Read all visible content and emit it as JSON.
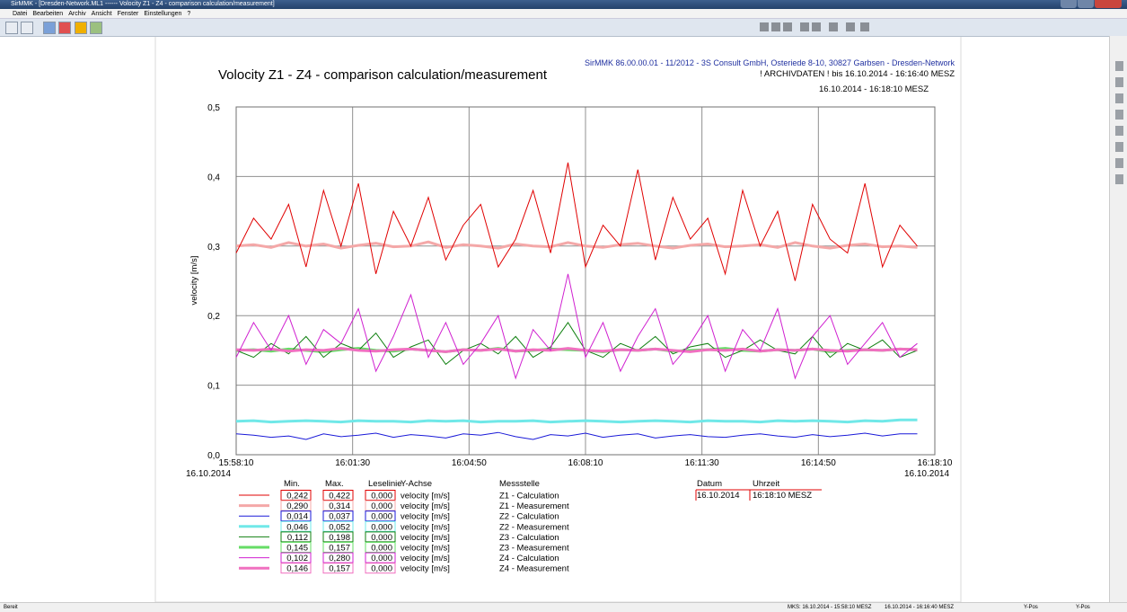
{
  "window": {
    "title": "SirMMK - [Dresden-Network.ML1 ------ Volocity Z1 - Z4 - comparison calculation/measurement]",
    "menu": [
      "Datei",
      "Bearbeiten",
      "Archiv",
      "Ansicht",
      "Fenster",
      "Einstellungen",
      "?"
    ]
  },
  "status": {
    "left": "Bereit",
    "items": [
      "MKS: 16.10.2014 - 15:58:10 MESZ",
      "16.10.2014 - 16:16:40 MESZ",
      "Y-Pos",
      "Y-Pos"
    ]
  },
  "header": {
    "info": "SirMMK 86.00.00.01 - 11/2012 - 3S Consult GmbH, Osteriede 8-10, 30827 Garbsen - Dresden-Network",
    "archive": "! ARCHIVDATEN !  bis 16.10.2014 - 16:16:40 MESZ",
    "range": "16.10.2014 - 16:18:10 MESZ"
  },
  "chart_data": {
    "type": "line",
    "title": "Volocity Z1 - Z4 - comparison calculation/measurement",
    "y_label": "velocity [m/s]",
    "x_date_label": "16.10.2014",
    "xlim": [
      "15:58:10",
      "16:18:10"
    ],
    "xticks": [
      "15:58:10",
      "16:01:30",
      "16:04:50",
      "16:08:10",
      "16:11:30",
      "16:14:50",
      "16:18:10"
    ],
    "ylim": [
      0,
      0.5
    ],
    "yticks": [
      {
        "value": 0,
        "label": "0,0"
      },
      {
        "value": 0.1,
        "label": "0,1"
      },
      {
        "value": 0.2,
        "label": "0,2"
      },
      {
        "value": 0.3,
        "label": "0,3"
      },
      {
        "value": 0.4,
        "label": "0,4"
      },
      {
        "value": 0.5,
        "label": "0,5"
      }
    ],
    "grid": true,
    "x": [
      "15:58:10",
      "15:58:40",
      "15:59:10",
      "15:59:40",
      "16:00:10",
      "16:00:40",
      "16:01:10",
      "16:01:40",
      "16:02:10",
      "16:02:40",
      "16:03:10",
      "16:03:40",
      "16:04:10",
      "16:04:40",
      "16:05:10",
      "16:05:40",
      "16:06:10",
      "16:06:40",
      "16:07:10",
      "16:07:40",
      "16:08:10",
      "16:08:40",
      "16:09:10",
      "16:09:40",
      "16:10:10",
      "16:10:40",
      "16:11:10",
      "16:11:40",
      "16:12:10",
      "16:12:40",
      "16:13:10",
      "16:13:40",
      "16:14:10",
      "16:14:40",
      "16:15:10",
      "16:15:40",
      "16:16:10",
      "16:16:40",
      "16:17:10",
      "16:17:40"
    ],
    "series": [
      {
        "name": "Z1 - Calculation",
        "color": "#e00000",
        "width": 1,
        "values": [
          0.29,
          0.34,
          0.31,
          0.36,
          0.27,
          0.38,
          0.3,
          0.39,
          0.26,
          0.35,
          0.3,
          0.37,
          0.28,
          0.33,
          0.36,
          0.27,
          0.31,
          0.38,
          0.29,
          0.42,
          0.27,
          0.33,
          0.3,
          0.41,
          0.28,
          0.37,
          0.31,
          0.34,
          0.26,
          0.38,
          0.3,
          0.35,
          0.25,
          0.36,
          0.31,
          0.29,
          0.39,
          0.27,
          0.33,
          0.3
        ]
      },
      {
        "name": "Z1 - Measurement",
        "color": "#f4a8a8",
        "width": 3,
        "values": [
          0.3,
          0.302,
          0.298,
          0.305,
          0.3,
          0.303,
          0.297,
          0.301,
          0.304,
          0.299,
          0.3,
          0.306,
          0.298,
          0.302,
          0.3,
          0.297,
          0.303,
          0.3,
          0.299,
          0.305,
          0.3,
          0.298,
          0.302,
          0.304,
          0.3,
          0.297,
          0.301,
          0.303,
          0.299,
          0.3,
          0.302,
          0.298,
          0.305,
          0.3,
          0.297,
          0.301,
          0.303,
          0.299,
          0.3,
          0.298
        ]
      },
      {
        "name": "Z2 - Calculation",
        "color": "#1a1ad8",
        "width": 1,
        "values": [
          0.03,
          0.028,
          0.025,
          0.027,
          0.022,
          0.03,
          0.026,
          0.028,
          0.031,
          0.025,
          0.029,
          0.027,
          0.024,
          0.03,
          0.028,
          0.032,
          0.026,
          0.022,
          0.029,
          0.027,
          0.031,
          0.025,
          0.028,
          0.03,
          0.024,
          0.027,
          0.029,
          0.026,
          0.025,
          0.028,
          0.03,
          0.027,
          0.025,
          0.029,
          0.026,
          0.028,
          0.031,
          0.027,
          0.03,
          0.03
        ]
      },
      {
        "name": "Z2 - Measurement",
        "color": "#70e8e8",
        "width": 3,
        "values": [
          0.048,
          0.049,
          0.047,
          0.048,
          0.049,
          0.048,
          0.047,
          0.049,
          0.048,
          0.048,
          0.047,
          0.049,
          0.048,
          0.049,
          0.047,
          0.048,
          0.048,
          0.049,
          0.047,
          0.048,
          0.049,
          0.048,
          0.047,
          0.048,
          0.049,
          0.048,
          0.047,
          0.049,
          0.048,
          0.048,
          0.047,
          0.049,
          0.048,
          0.049,
          0.048,
          0.047,
          0.049,
          0.048,
          0.05,
          0.05
        ]
      },
      {
        "name": "Z3 - Calculation",
        "color": "#108010",
        "width": 1,
        "values": [
          0.15,
          0.14,
          0.16,
          0.145,
          0.17,
          0.14,
          0.16,
          0.15,
          0.175,
          0.14,
          0.155,
          0.165,
          0.13,
          0.15,
          0.16,
          0.145,
          0.17,
          0.14,
          0.155,
          0.19,
          0.15,
          0.14,
          0.16,
          0.15,
          0.17,
          0.145,
          0.155,
          0.16,
          0.14,
          0.15,
          0.165,
          0.15,
          0.145,
          0.17,
          0.14,
          0.16,
          0.15,
          0.165,
          0.14,
          0.15
        ]
      },
      {
        "name": "Z3 - Measurement",
        "color": "#66dd66",
        "width": 3,
        "values": [
          0.15,
          0.151,
          0.149,
          0.152,
          0.15,
          0.148,
          0.151,
          0.153,
          0.15,
          0.149,
          0.152,
          0.15,
          0.148,
          0.151,
          0.15,
          0.153,
          0.149,
          0.15,
          0.152,
          0.151,
          0.15,
          0.148,
          0.151,
          0.15,
          0.152,
          0.149,
          0.15,
          0.151,
          0.153,
          0.15,
          0.149,
          0.151,
          0.15,
          0.152,
          0.148,
          0.15,
          0.151,
          0.15,
          0.152,
          0.151
        ]
      },
      {
        "name": "Z4 - Calculation",
        "color": "#d020d0",
        "width": 1,
        "values": [
          0.14,
          0.19,
          0.15,
          0.2,
          0.13,
          0.18,
          0.16,
          0.21,
          0.12,
          0.17,
          0.23,
          0.14,
          0.19,
          0.13,
          0.16,
          0.2,
          0.11,
          0.18,
          0.15,
          0.26,
          0.14,
          0.19,
          0.12,
          0.17,
          0.21,
          0.13,
          0.16,
          0.2,
          0.12,
          0.18,
          0.15,
          0.21,
          0.11,
          0.17,
          0.2,
          0.13,
          0.16,
          0.19,
          0.14,
          0.16
        ]
      },
      {
        "name": "Z4 - Measurement",
        "color": "#f070c0",
        "width": 3,
        "values": [
          0.151,
          0.15,
          0.152,
          0.149,
          0.151,
          0.15,
          0.153,
          0.15,
          0.149,
          0.151,
          0.152,
          0.15,
          0.148,
          0.151,
          0.15,
          0.152,
          0.149,
          0.151,
          0.15,
          0.153,
          0.15,
          0.149,
          0.151,
          0.15,
          0.152,
          0.15,
          0.148,
          0.151,
          0.15,
          0.152,
          0.149,
          0.151,
          0.15,
          0.152,
          0.15,
          0.149,
          0.151,
          0.15,
          0.152,
          0.151
        ]
      }
    ]
  },
  "legend": {
    "headers": [
      "Min.",
      "Max.",
      "Leselinie",
      "Y-Achse",
      "Messstelle"
    ],
    "rows": [
      [
        "0,242",
        "0,422",
        "0,000",
        "velocity [m/s]"
      ],
      [
        "0,290",
        "0,314",
        "0,000",
        "velocity [m/s]"
      ],
      [
        "0,014",
        "0,037",
        "0,000",
        "velocity [m/s]"
      ],
      [
        "0,046",
        "0,052",
        "0,000",
        "velocity [m/s]"
      ],
      [
        "0,112",
        "0,198",
        "0,000",
        "velocity [m/s]"
      ],
      [
        "0,145",
        "0,157",
        "0,000",
        "velocity [m/s]"
      ],
      [
        "0,102",
        "0,280",
        "0,000",
        "velocity [m/s]"
      ],
      [
        "0,146",
        "0,157",
        "0,000",
        "velocity [m/s]"
      ]
    ]
  },
  "readout": {
    "headers": [
      "Datum",
      "Uhrzeit"
    ],
    "values": [
      "16.10.2014",
      "16:18:10 MESZ"
    ]
  }
}
